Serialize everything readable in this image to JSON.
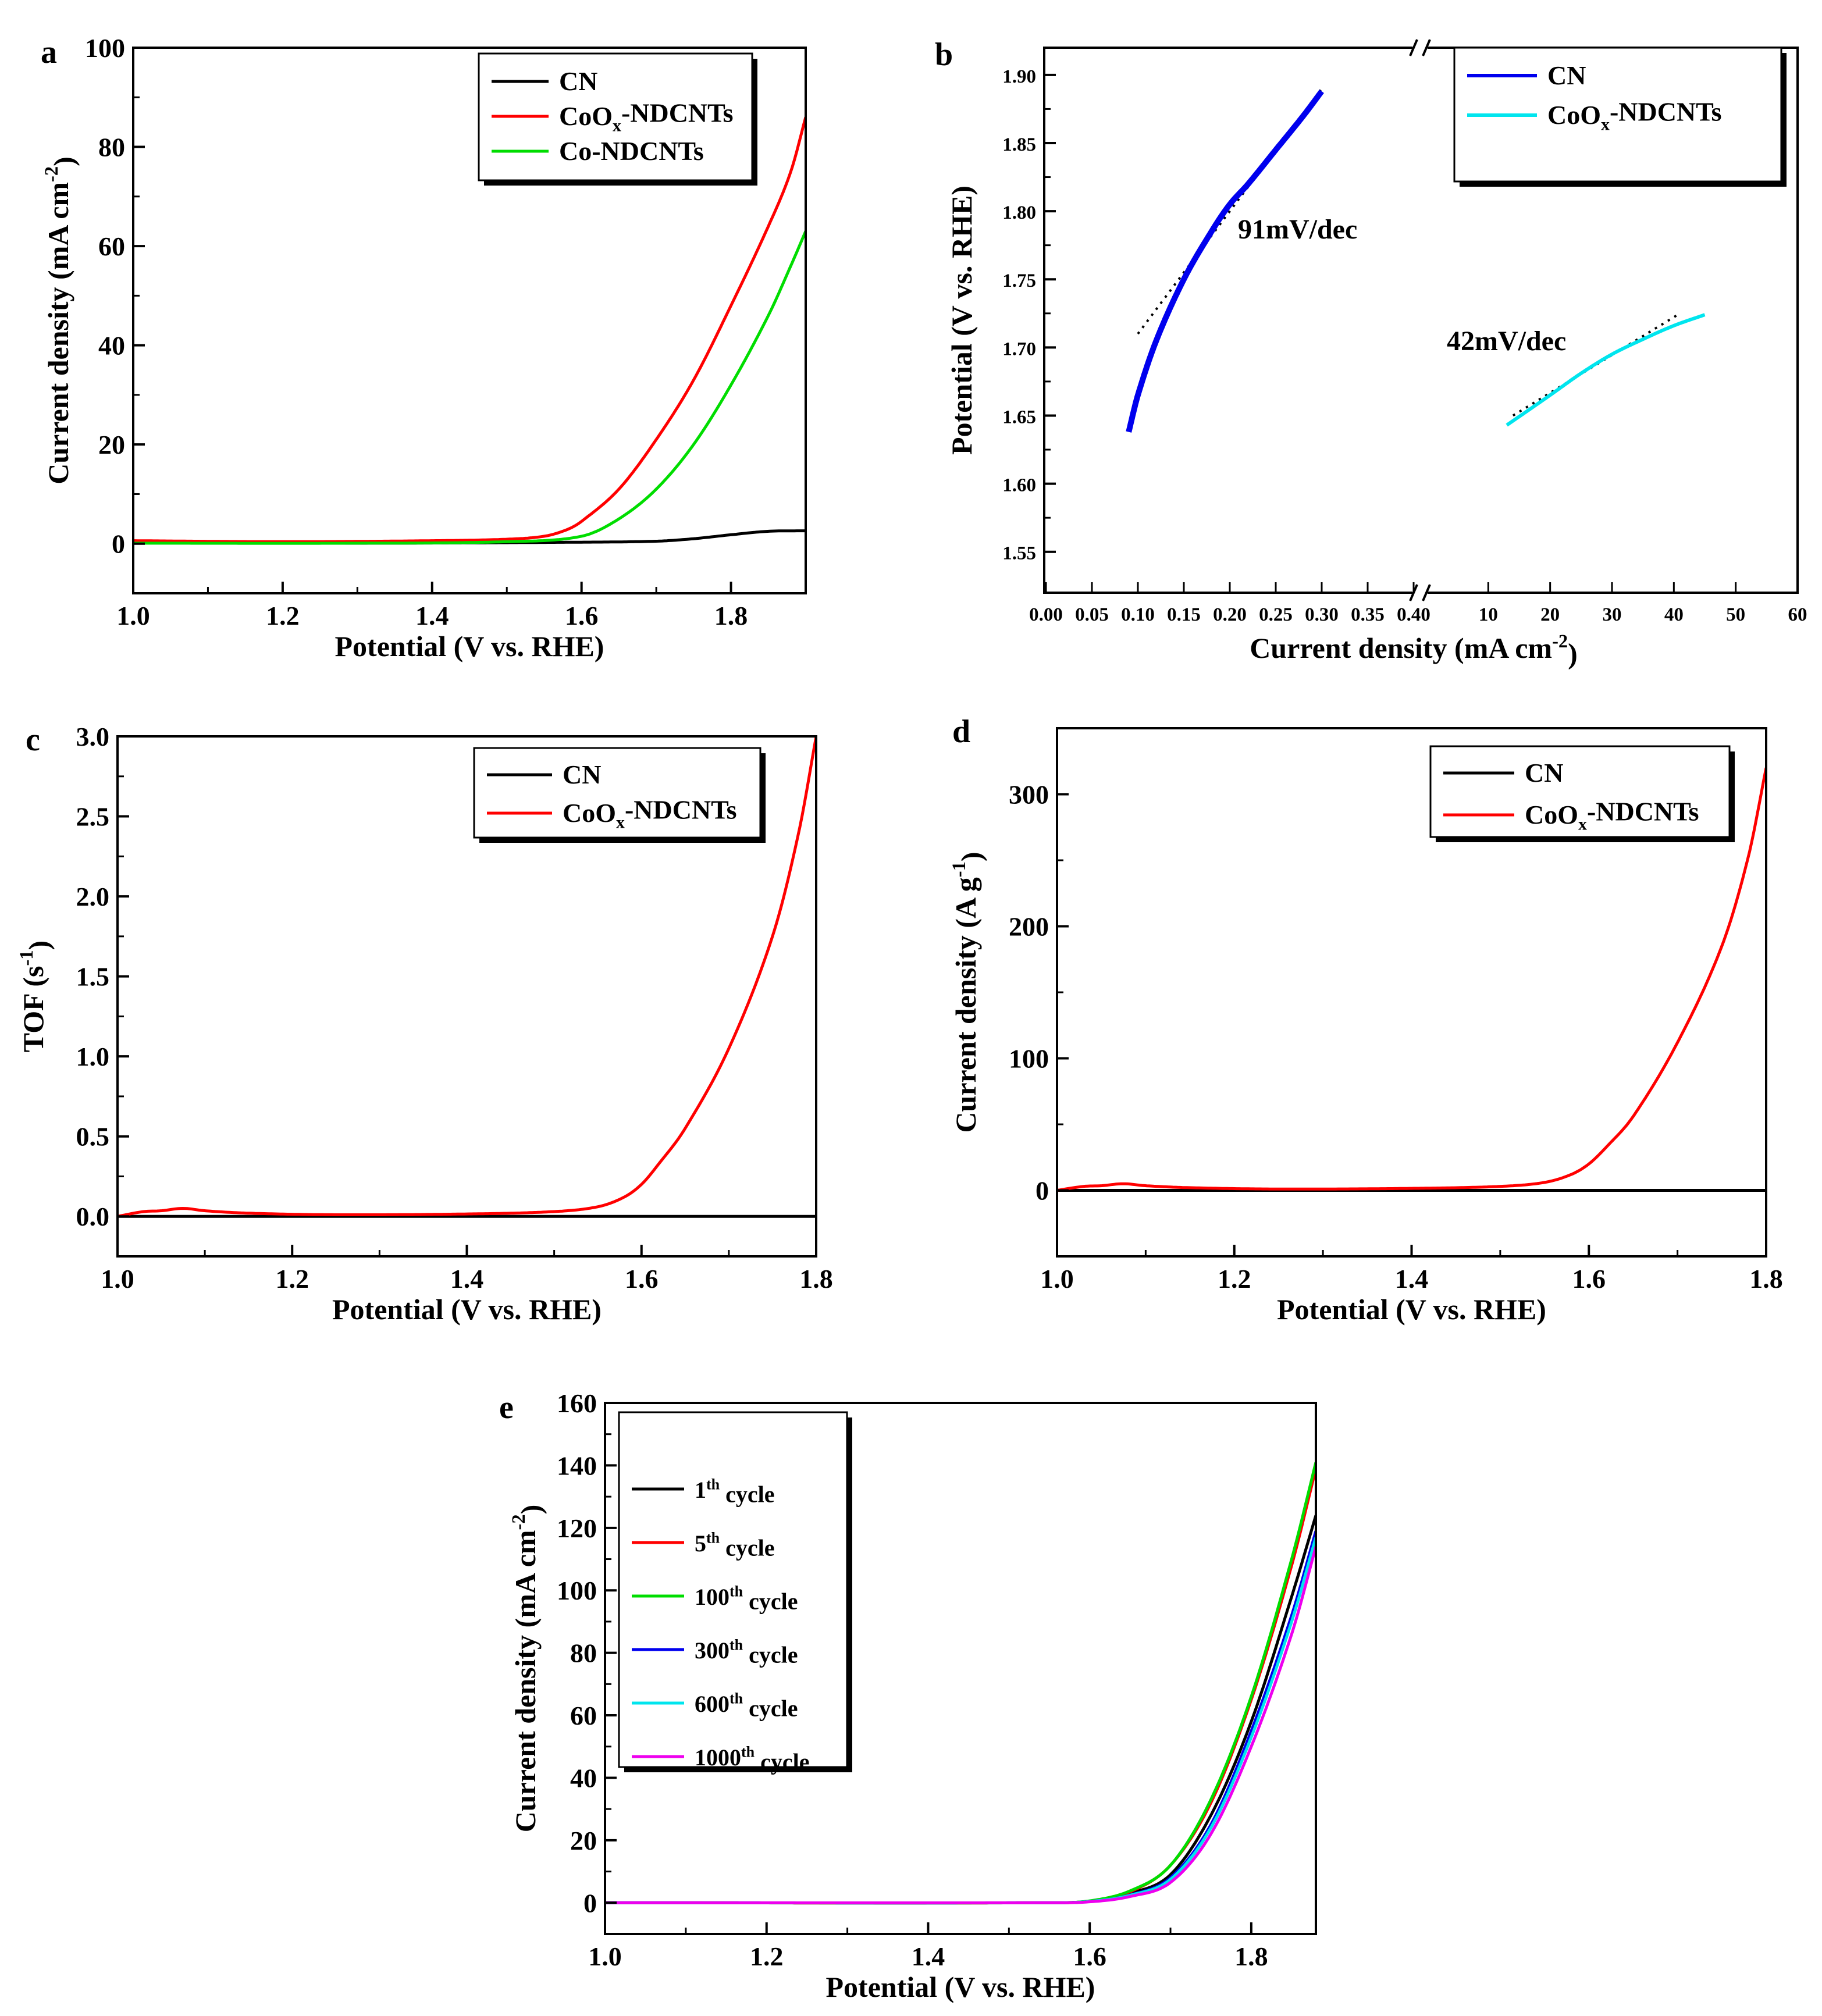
{
  "chart_data": [
    {
      "panel": "a",
      "type": "line",
      "xlabel": "Potential (V vs. RHE)",
      "ylabel": "Current density (mA cm^-2)",
      "ylabel_parts": [
        "Current density (mA cm",
        "-2",
        ")"
      ],
      "xlim": [
        1.0,
        1.9
      ],
      "ylim": [
        -10,
        100
      ],
      "xticks": [
        "1.0",
        "1.2",
        "1.4",
        "1.6",
        "1.8"
      ],
      "yticks": [
        "0",
        "20",
        "40",
        "60",
        "80",
        "100"
      ],
      "series": [
        {
          "name": "CN",
          "label_parts": [
            "CN"
          ],
          "color": "#000000",
          "x": [
            1.0,
            1.3,
            1.6,
            1.7,
            1.75,
            1.8,
            1.85,
            1.9
          ],
          "y": [
            0.2,
            0.1,
            0.3,
            0.5,
            1.0,
            1.8,
            2.5,
            2.6
          ]
        },
        {
          "name": "CoOx-NDCNTs",
          "label_parts": [
            "CoO",
            "x",
            "-NDCNTs"
          ],
          "color": "#ff0000",
          "x": [
            1.0,
            1.2,
            1.4,
            1.5,
            1.55,
            1.58,
            1.6,
            1.65,
            1.7,
            1.75,
            1.8,
            1.85,
            1.88,
            1.9
          ],
          "y": [
            0.6,
            0.4,
            0.6,
            0.9,
            1.5,
            2.8,
            4.5,
            11,
            21,
            33,
            48,
            64,
            75,
            86
          ]
        },
        {
          "name": "Co-NDCNTs",
          "label_parts": [
            "Co-NDCNTs"
          ],
          "color": "#00dd00",
          "x": [
            1.0,
            1.3,
            1.5,
            1.6,
            1.65,
            1.7,
            1.75,
            1.8,
            1.85,
            1.88,
            1.9
          ],
          "y": [
            0.1,
            0.1,
            0.4,
            1.5,
            5,
            11,
            20,
            32,
            46,
            56,
            63
          ]
        }
      ]
    },
    {
      "panel": "b",
      "type": "scatter",
      "xlabel": "Current density (mA cm^-2)",
      "xlabel_parts": [
        "Current density (mA cm",
        "-2",
        ")"
      ],
      "ylabel": "Potential (V vs. RHE)",
      "ylim": [
        1.52,
        1.92
      ],
      "x_broken_axis": true,
      "xlim_left": [
        0.0,
        0.4
      ],
      "xlim_right": [
        0,
        60
      ],
      "xticks_left": [
        "0.00",
        "0.05",
        "0.10",
        "0.15",
        "0.20",
        "0.25",
        "0.30",
        "0.35",
        "0.40"
      ],
      "xticks_right": [
        "10",
        "20",
        "30",
        "40",
        "50",
        "60"
      ],
      "yticks": [
        "1.55",
        "1.60",
        "1.65",
        "1.70",
        "1.75",
        "1.80",
        "1.85",
        "1.90"
      ],
      "series": [
        {
          "name": "CN",
          "label_parts": [
            "CN"
          ],
          "color": "#0000ee",
          "segment": "left",
          "x": [
            0.09,
            0.1,
            0.12,
            0.15,
            0.18,
            0.2,
            0.22,
            0.25,
            0.28,
            0.3
          ],
          "y": [
            1.638,
            1.665,
            1.705,
            1.75,
            1.785,
            1.805,
            1.82,
            1.845,
            1.87,
            1.888
          ]
        },
        {
          "name": "CoOx-NDCNTs",
          "label_parts": [
            "CoO",
            "x",
            "-NDCNTs"
          ],
          "color": "#00e5ee",
          "segment": "right",
          "x": [
            13,
            20,
            25,
            30,
            35,
            40,
            45
          ],
          "y": [
            1.643,
            1.665,
            1.681,
            1.695,
            1.706,
            1.716,
            1.724
          ]
        }
      ],
      "fits": [
        {
          "segment": "left",
          "x": [
            0.1,
            0.3
          ],
          "y": [
            1.71,
            1.89
          ]
        },
        {
          "segment": "right",
          "x": [
            14,
            41
          ],
          "y": [
            1.65,
            1.725
          ]
        }
      ],
      "annotations": [
        "91mV/dec",
        "42mV/dec"
      ]
    },
    {
      "panel": "c",
      "type": "line",
      "xlabel": "Potential (V vs. RHE)",
      "ylabel": "TOF (s^-1)",
      "ylabel_parts": [
        "TOF (s",
        "-1",
        ")"
      ],
      "xlim": [
        1.0,
        1.8
      ],
      "ylim": [
        -0.25,
        3.0
      ],
      "xticks": [
        "1.0",
        "1.2",
        "1.4",
        "1.6",
        "1.8"
      ],
      "yticks": [
        "0.0",
        "0.5",
        "1.0",
        "1.5",
        "2.0",
        "2.5",
        "3.0"
      ],
      "series": [
        {
          "name": "CN",
          "label_parts": [
            "CN"
          ],
          "color": "#000000",
          "x": [
            1.0,
            1.8
          ],
          "y": [
            0.0,
            0.0
          ]
        },
        {
          "name": "CoOx-NDCNTs",
          "label_parts": [
            "CoO",
            "x",
            "-NDCNTs"
          ],
          "color": "#ff0000",
          "x": [
            1.0,
            1.03,
            1.05,
            1.075,
            1.1,
            1.15,
            1.25,
            1.4,
            1.5,
            1.55,
            1.58,
            1.6,
            1.62,
            1.65,
            1.7,
            1.75,
            1.78,
            1.8
          ],
          "y": [
            0.0,
            0.03,
            0.035,
            0.05,
            0.035,
            0.02,
            0.01,
            0.015,
            0.03,
            0.06,
            0.12,
            0.2,
            0.33,
            0.55,
            1.05,
            1.75,
            2.4,
            3.0
          ]
        }
      ]
    },
    {
      "panel": "d",
      "type": "line",
      "xlabel": "Potential (V vs. RHE)",
      "ylabel": "Current density (A g^-1)",
      "ylabel_parts": [
        "Current density (A g",
        "-1",
        ")"
      ],
      "xlim": [
        1.0,
        1.8
      ],
      "ylim": [
        -50,
        350
      ],
      "xticks": [
        "1.0",
        "1.2",
        "1.4",
        "1.6",
        "1.8"
      ],
      "yticks": [
        "0",
        "100",
        "200",
        "300"
      ],
      "series": [
        {
          "name": "CN",
          "label_parts": [
            "CN"
          ],
          "color": "#000000",
          "x": [
            1.0,
            1.8
          ],
          "y": [
            0.0,
            0.0
          ]
        },
        {
          "name": "CoOx-NDCNTs",
          "label_parts": [
            "CoO",
            "x",
            "-NDCNTs"
          ],
          "color": "#ff0000",
          "x": [
            1.0,
            1.03,
            1.05,
            1.075,
            1.1,
            1.15,
            1.25,
            1.4,
            1.5,
            1.55,
            1.58,
            1.6,
            1.62,
            1.65,
            1.7,
            1.75,
            1.78,
            1.8
          ],
          "y": [
            0.0,
            3,
            3.5,
            5,
            3.5,
            2,
            1,
            1.5,
            3,
            6,
            12,
            20,
            33,
            56,
            112,
            185,
            253,
            320
          ]
        }
      ]
    },
    {
      "panel": "e",
      "type": "line",
      "xlabel": "Potential (V vs. RHE)",
      "ylabel": "Current density (mA cm^-2)",
      "ylabel_parts": [
        "Current density (mA cm",
        "-2",
        ")"
      ],
      "xlim": [
        1.0,
        1.88
      ],
      "ylim": [
        -10,
        160
      ],
      "xticks": [
        "1.0",
        "1.2",
        "1.4",
        "1.6",
        "1.8"
      ],
      "yticks": [
        "0",
        "20",
        "40",
        "60",
        "80",
        "100",
        "120",
        "140",
        "160"
      ],
      "series": [
        {
          "name": "1th cycle",
          "label_parts": [
            "1",
            "th",
            " cycle"
          ],
          "color": "#000000",
          "x": [
            1.0,
            1.55,
            1.6,
            1.65,
            1.7,
            1.75,
            1.8,
            1.85,
            1.88
          ],
          "y": [
            0,
            0,
            0.5,
            3,
            9,
            28,
            58,
            98,
            124
          ]
        },
        {
          "name": "5th cycle",
          "label_parts": [
            "5",
            "th",
            " cycle"
          ],
          "color": "#ff0000",
          "x": [
            1.0,
            1.55,
            1.6,
            1.65,
            1.7,
            1.75,
            1.8,
            1.85,
            1.88
          ],
          "y": [
            0,
            0,
            0.5,
            3.5,
            12,
            32,
            65,
            108,
            139
          ]
        },
        {
          "name": "100th cycle",
          "label_parts": [
            "100",
            "th",
            " cycle"
          ],
          "color": "#00dd00",
          "x": [
            1.0,
            1.55,
            1.6,
            1.65,
            1.7,
            1.75,
            1.8,
            1.85,
            1.88
          ],
          "y": [
            0,
            0,
            0.6,
            3.8,
            12,
            33,
            66,
            110,
            141
          ]
        },
        {
          "name": "300th cycle",
          "label_parts": [
            "300",
            "th",
            " cycle"
          ],
          "color": "#0000ee",
          "x": [
            1.0,
            1.55,
            1.6,
            1.65,
            1.7,
            1.75,
            1.8,
            1.85,
            1.88
          ],
          "y": [
            0,
            0,
            0.4,
            2.5,
            8,
            25,
            55,
            92,
            119
          ]
        },
        {
          "name": "600th cycle",
          "label_parts": [
            "600",
            "th",
            " cycle"
          ],
          "color": "#00e5ee",
          "x": [
            1.0,
            1.55,
            1.6,
            1.65,
            1.7,
            1.75,
            1.8,
            1.85,
            1.88
          ],
          "y": [
            0,
            0,
            0.4,
            2.4,
            7.5,
            24,
            53,
            90,
            117
          ]
        },
        {
          "name": "1000th cycle",
          "label_parts": [
            "1000",
            "th",
            " cycle"
          ],
          "color": "#ee00ee",
          "x": [
            1.0,
            1.55,
            1.6,
            1.65,
            1.7,
            1.75,
            1.8,
            1.85,
            1.88
          ],
          "y": [
            0,
            0,
            0.3,
            2,
            6.5,
            22,
            50,
            86,
            114
          ]
        }
      ]
    }
  ]
}
